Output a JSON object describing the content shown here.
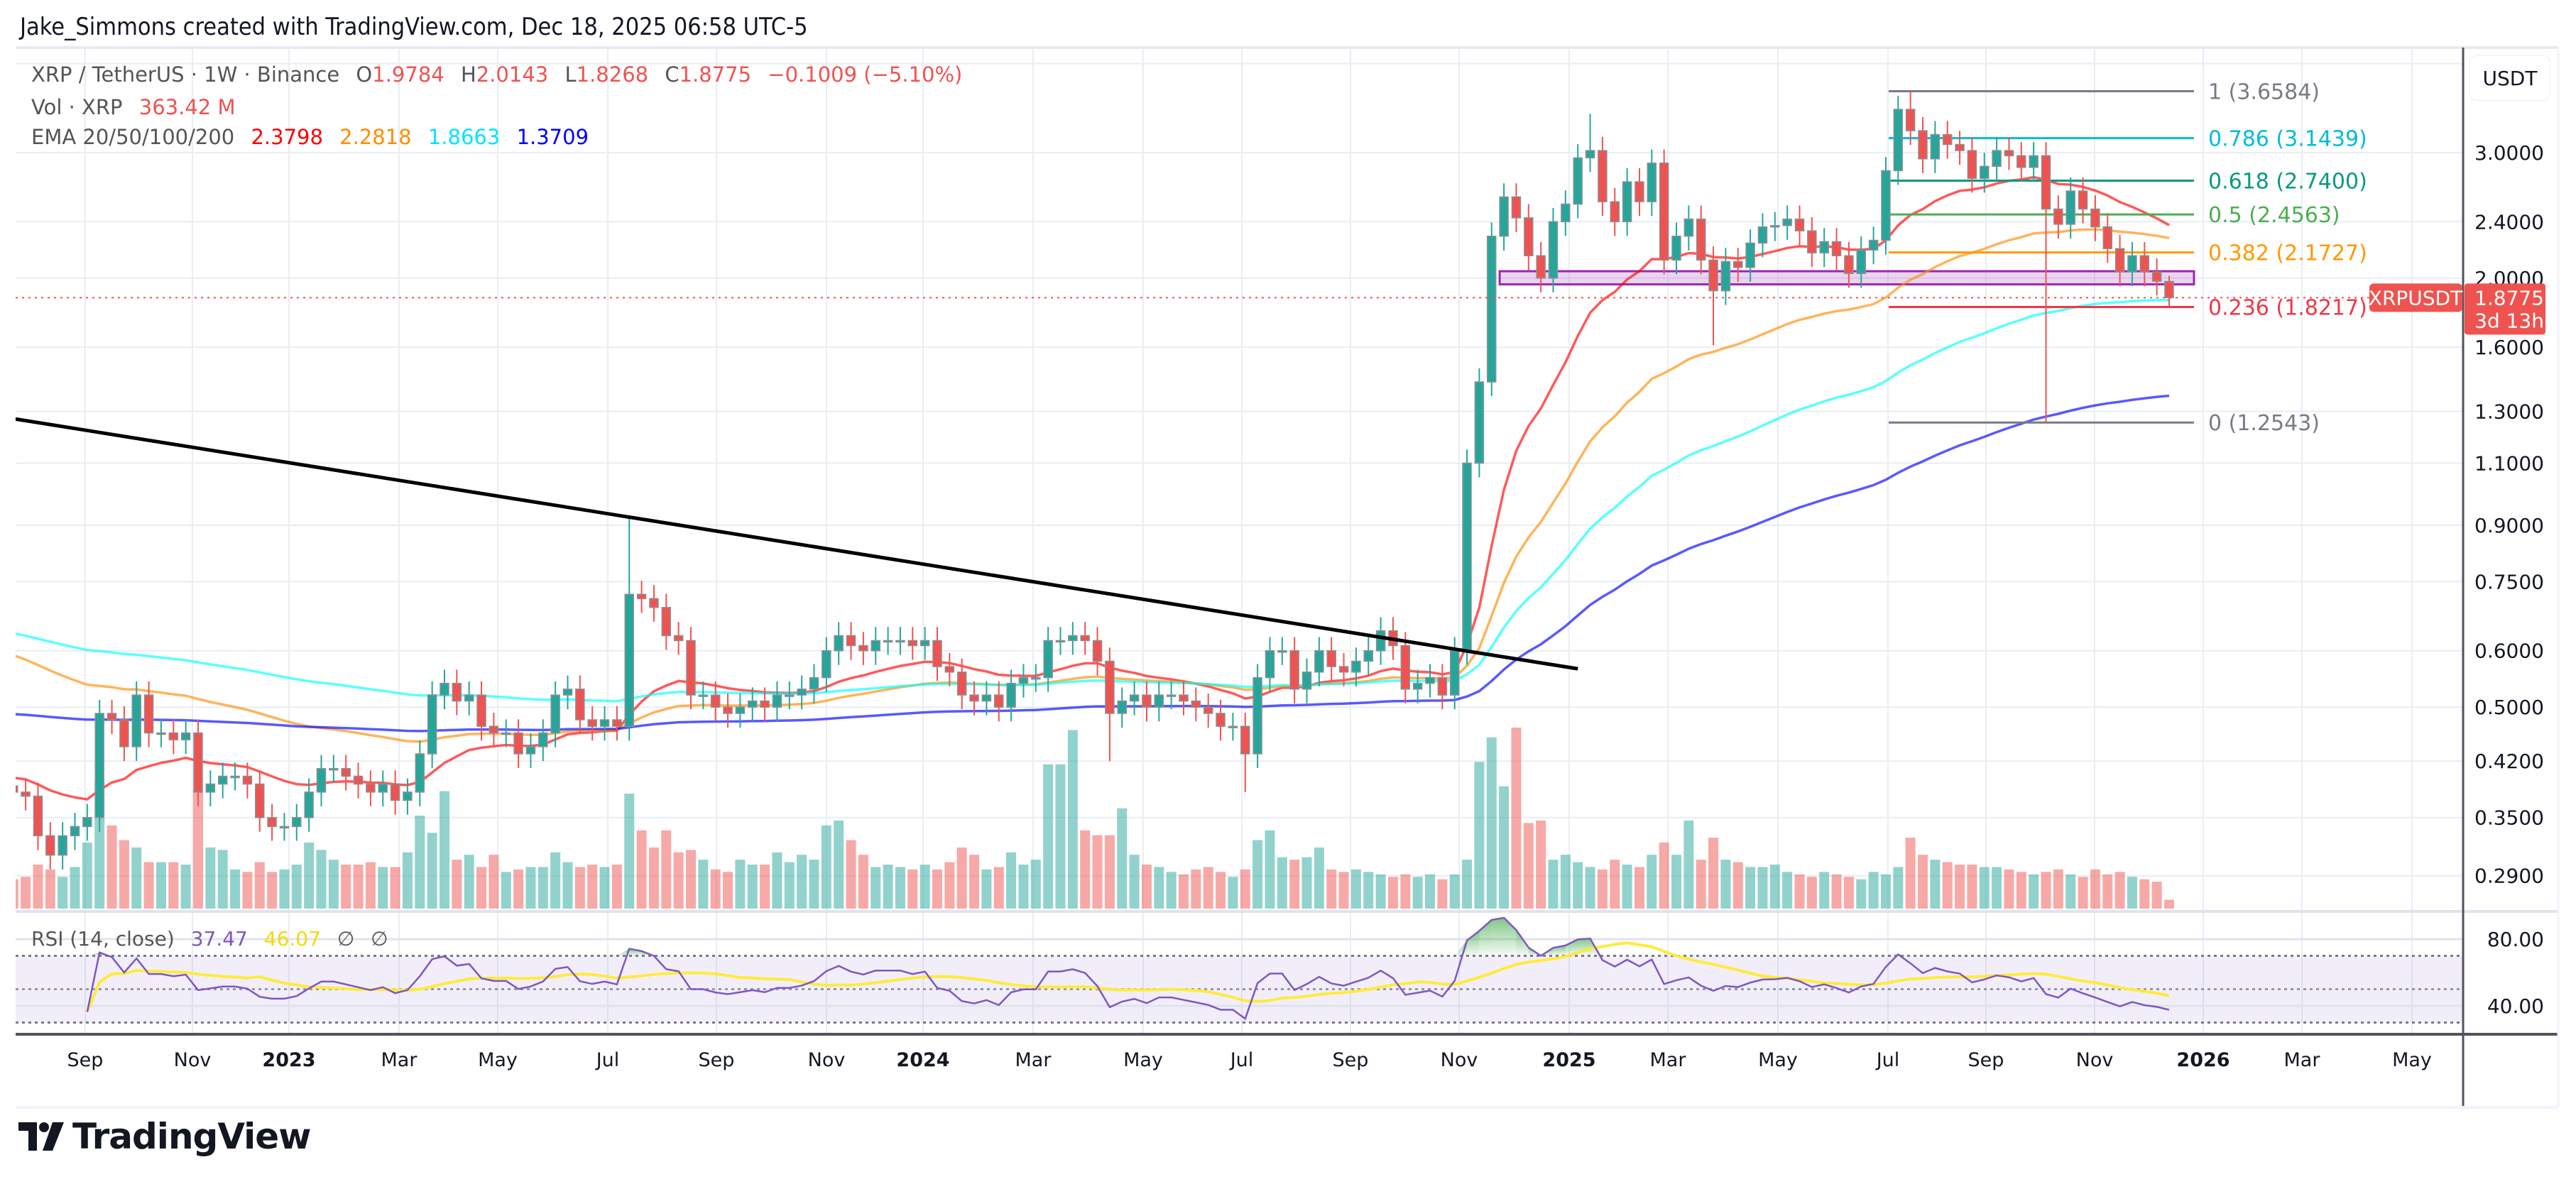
{
  "watermark": "Jake_Simmons created with TradingView.com, Dec 18, 2025 06:58 UTC-5",
  "legend": {
    "symbol": "XRP / TetherUS · 1W · Binance",
    "o_label": "O",
    "open": "1.9784",
    "h_label": "H",
    "high": "2.0143",
    "l_label": "L",
    "low": "1.8268",
    "c_label": "C",
    "close": "1.8775",
    "change": "−0.1009 (−5.10%)",
    "vol_label": "Vol · XRP",
    "vol_value": "363.42 M",
    "ema_label": "EMA 20/50/100/200",
    "ema20": "2.3798",
    "ema50": "2.2818",
    "ema100": "1.8663",
    "ema200": "1.3709"
  },
  "colors": {
    "up": "#26a69a",
    "down": "#ef5350",
    "ema20": "#ff0000",
    "ema50": "#ff8c00",
    "ema100": "#00ffff",
    "ema200": "#0000ff",
    "rsi": "#7e57c2",
    "rsi_ma": "#ffeb3b",
    "trendline": "#000000",
    "zone": "#9c27b0"
  },
  "price_axis": {
    "currency": "USDT",
    "labels": [
      "3.0000",
      "2.4000",
      "2.0000",
      "1.6000",
      "1.3000",
      "1.1000",
      "0.9000",
      "0.7500",
      "0.6000",
      "0.5000",
      "0.4200",
      "0.3500",
      "0.2900"
    ],
    "last_symbol": "XRPUSDT",
    "last_price": "1.8775",
    "countdown": "3d 13h"
  },
  "time_axis": [
    "Sep",
    "Nov",
    "2023",
    "Mar",
    "May",
    "Jul",
    "Sep",
    "Nov",
    "2024",
    "Mar",
    "May",
    "Jul",
    "Sep",
    "Nov",
    "2025",
    "Mar",
    "May",
    "Jul",
    "Sep",
    "Nov",
    "2026",
    "Mar",
    "May"
  ],
  "fib": [
    {
      "label": "1 (3.6584)",
      "price": 3.6584,
      "color": "#787b86"
    },
    {
      "label": "0.786 (3.1439)",
      "price": 3.1439,
      "color": "#00bcd4"
    },
    {
      "label": "0.618 (2.7400)",
      "price": 2.74,
      "color": "#089981"
    },
    {
      "label": "0.5 (2.4563)",
      "price": 2.4563,
      "color": "#4caf50"
    },
    {
      "label": "0.382 (2.1727)",
      "price": 2.1727,
      "color": "#ff9800"
    },
    {
      "label": "0.236 (1.8217)",
      "price": 1.8217,
      "color": "#f23645"
    },
    {
      "label": "0 (1.2543)",
      "price": 1.2543,
      "color": "#787b86"
    }
  ],
  "rsi": {
    "label": "RSI (14, close)",
    "value": "37.47",
    "ma_value": "46.07",
    "na1": "∅",
    "na2": "∅",
    "axis": [
      "80.00",
      "40.00"
    ],
    "bands": [
      70,
      50,
      30
    ]
  },
  "logo": "TradingView",
  "chart_data": {
    "type": "candlestick",
    "interval": "1W",
    "scale": "log",
    "last_bar": "2025-12-15",
    "closes": [
      0.38,
      0.375,
      0.33,
      0.31,
      0.33,
      0.34,
      0.35,
      0.49,
      0.48,
      0.44,
      0.52,
      0.46,
      0.46,
      0.45,
      0.46,
      0.38,
      0.39,
      0.4,
      0.4,
      0.39,
      0.35,
      0.34,
      0.34,
      0.35,
      0.38,
      0.41,
      0.41,
      0.4,
      0.39,
      0.38,
      0.39,
      0.37,
      0.38,
      0.43,
      0.52,
      0.54,
      0.51,
      0.52,
      0.47,
      0.46,
      0.46,
      0.43,
      0.44,
      0.46,
      0.52,
      0.53,
      0.48,
      0.47,
      0.48,
      0.47,
      0.72,
      0.71,
      0.69,
      0.63,
      0.62,
      0.52,
      0.52,
      0.5,
      0.49,
      0.5,
      0.51,
      0.5,
      0.52,
      0.52,
      0.53,
      0.55,
      0.6,
      0.63,
      0.61,
      0.6,
      0.62,
      0.62,
      0.62,
      0.61,
      0.62,
      0.57,
      0.56,
      0.52,
      0.51,
      0.52,
      0.5,
      0.54,
      0.55,
      0.55,
      0.62,
      0.62,
      0.63,
      0.62,
      0.58,
      0.49,
      0.51,
      0.52,
      0.5,
      0.52,
      0.52,
      0.51,
      0.5,
      0.49,
      0.47,
      0.47,
      0.43,
      0.55,
      0.6,
      0.6,
      0.53,
      0.56,
      0.6,
      0.57,
      0.56,
      0.58,
      0.6,
      0.64,
      0.61,
      0.53,
      0.54,
      0.55,
      0.52,
      0.6,
      1.1,
      1.43,
      2.29,
      2.6,
      2.43,
      2.15,
      2.0,
      2.4,
      2.54,
      2.95,
      3.02,
      2.56,
      2.4,
      2.73,
      2.56,
      2.9,
      2.12,
      2.29,
      2.42,
      2.12,
      1.92,
      2.11,
      2.07,
      2.24,
      2.36,
      2.37,
      2.42,
      2.33,
      2.17,
      2.25,
      2.15,
      2.03,
      2.19,
      2.26,
      2.83,
      3.45,
      3.22,
      2.94,
      3.18,
      3.08,
      3.02,
      2.76,
      2.87,
      3.02,
      2.97,
      2.86,
      2.97,
      2.5,
      2.38,
      2.65,
      2.5,
      2.36,
      2.2,
      2.04,
      2.15,
      2.04,
      1.98,
      1.8775
    ],
    "last_open": 1.9784,
    "last_high": 2.0143,
    "last_low": 1.8268,
    "wick_extremes": [
      {
        "index": 50,
        "high": 0.93
      },
      {
        "index": 89,
        "low": 0.42
      },
      {
        "index": 100,
        "low": 0.38
      },
      {
        "index": 128,
        "high": 3.4
      },
      {
        "index": 138,
        "low": 1.61
      },
      {
        "index": 154,
        "high": 3.66
      },
      {
        "index": 165,
        "low": 1.2543
      }
    ],
    "volume_millions": [
      1200,
      1300,
      1800,
      1600,
      1300,
      1700,
      2700,
      5200,
      3400,
      2800,
      2500,
      1900,
      1900,
      1900,
      1800,
      4800,
      2500,
      2400,
      1600,
      1500,
      1900,
      1500,
      1600,
      1800,
      2700,
      2400,
      2000,
      1800,
      1800,
      1900,
      1700,
      1700,
      2300,
      3800,
      3100,
      4800,
      2000,
      2200,
      1700,
      2200,
      1500,
      1600,
      1700,
      1700,
      2300,
      1900,
      1700,
      1800,
      1700,
      1800,
      4700,
      3200,
      2500,
      3200,
      2300,
      2400,
      2000,
      1600,
      1500,
      2000,
      1800,
      1800,
      2300,
      1900,
      2200,
      2000,
      3400,
      3600,
      2800,
      2200,
      1700,
      1800,
      1700,
      1600,
      1800,
      1600,
      1900,
      2500,
      2200,
      1600,
      1700,
      2300,
      1800,
      2000,
      5900,
      5900,
      7300,
      3200,
      3000,
      3000,
      4100,
      2200,
      1800,
      1700,
      1500,
      1400,
      1600,
      1700,
      1500,
      1300,
      1600,
      2800,
      3200,
      2100,
      2000,
      2100,
      2500,
      1600,
      1500,
      1600,
      1500,
      1400,
      1300,
      1400,
      1300,
      1400,
      1200,
      1400,
      2000,
      6000,
      7000,
      5000,
      7400,
      3500,
      3600,
      2000,
      2200,
      1900,
      1700,
      1600,
      2000,
      1800,
      1700,
      2200,
      2700,
      2200,
      3600,
      2000,
      2900,
      2000,
      1900,
      1700,
      1700,
      1800,
      1500,
      1400,
      1300,
      1500,
      1400,
      1300,
      1200,
      1500,
      1400,
      1700,
      2900,
      2200,
      2000,
      1900,
      1800,
      1800,
      1700,
      1700,
      1600,
      1500,
      1400,
      1500,
      1600,
      1400,
      1300,
      1600,
      1400,
      1500,
      1300,
      1200,
      1100,
      363.42
    ],
    "indicators": [
      "EMA 20",
      "EMA 50",
      "EMA 100",
      "EMA 200",
      "RSI 14",
      "RSI MA 14"
    ],
    "trendline": [
      {
        "index": 0,
        "price": 1.27
      },
      {
        "index": 127,
        "price": 0.566
      }
    ],
    "support_zone": {
      "from_index": 121,
      "low": 1.96,
      "high": 2.045
    },
    "ylim": [
      0.27,
      4.0
    ],
    "grid": true
  }
}
